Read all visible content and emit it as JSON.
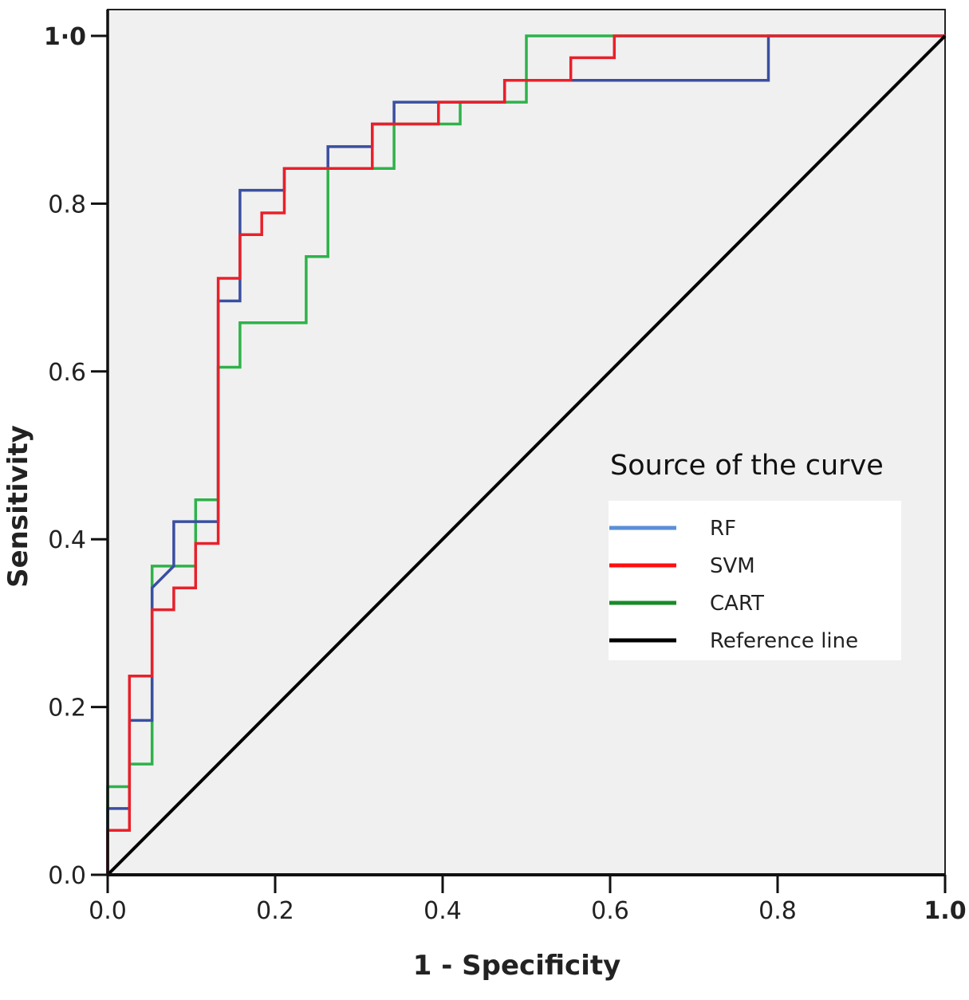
{
  "chart_data": {
    "type": "line",
    "title": "",
    "xlabel": "1 - Specificity",
    "ylabel": "Sensitivity",
    "xlim": [
      0,
      1
    ],
    "ylim": [
      0,
      1
    ],
    "grid": false,
    "x_ticks": [
      {
        "value": 0.0,
        "label": "0.0"
      },
      {
        "value": 0.2,
        "label": "0.2"
      },
      {
        "value": 0.4,
        "label": "0.4"
      },
      {
        "value": 0.6,
        "label": "0.6"
      },
      {
        "value": 0.8,
        "label": "0.8"
      },
      {
        "value": 1.0,
        "label": "1.0"
      }
    ],
    "y_ticks": [
      {
        "value": 0.0,
        "label": "0.0"
      },
      {
        "value": 0.2,
        "label": "0.2"
      },
      {
        "value": 0.4,
        "label": "0.4"
      },
      {
        "value": 0.6,
        "label": "0.6"
      },
      {
        "value": 0.8,
        "label": "0.8"
      },
      {
        "value": 1.0,
        "label": "1·0"
      }
    ],
    "legend": {
      "title": "Source of the curve",
      "placement": "center-right"
    },
    "series": [
      {
        "name": "RF",
        "color": "#3a4fa0",
        "legend_color": "#5b8fd6",
        "points": [
          [
            0,
            0
          ],
          [
            0,
            0.079
          ],
          [
            0.026,
            0.079
          ],
          [
            0.026,
            0.184
          ],
          [
            0.053,
            0.184
          ],
          [
            0.053,
            0.342
          ],
          [
            0.079,
            0.368
          ],
          [
            0.079,
            0.421
          ],
          [
            0.132,
            0.421
          ],
          [
            0.132,
            0.684
          ],
          [
            0.158,
            0.684
          ],
          [
            0.158,
            0.816
          ],
          [
            0.211,
            0.816
          ],
          [
            0.211,
            0.842
          ],
          [
            0.263,
            0.842
          ],
          [
            0.263,
            0.868
          ],
          [
            0.316,
            0.868
          ],
          [
            0.316,
            0.895
          ],
          [
            0.342,
            0.895
          ],
          [
            0.342,
            0.921
          ],
          [
            0.474,
            0.921
          ],
          [
            0.474,
            0.947
          ],
          [
            0.789,
            0.947
          ],
          [
            0.789,
            1.0
          ],
          [
            1.0,
            1.0
          ]
        ]
      },
      {
        "name": "SVM",
        "color": "#e8202a",
        "legend_color": "#ff1010",
        "points": [
          [
            0,
            0
          ],
          [
            0,
            0.053
          ],
          [
            0.026,
            0.053
          ],
          [
            0.026,
            0.237
          ],
          [
            0.053,
            0.237
          ],
          [
            0.053,
            0.316
          ],
          [
            0.079,
            0.316
          ],
          [
            0.079,
            0.342
          ],
          [
            0.105,
            0.342
          ],
          [
            0.105,
            0.395
          ],
          [
            0.132,
            0.395
          ],
          [
            0.132,
            0.711
          ],
          [
            0.158,
            0.711
          ],
          [
            0.158,
            0.763
          ],
          [
            0.184,
            0.763
          ],
          [
            0.184,
            0.789
          ],
          [
            0.211,
            0.789
          ],
          [
            0.211,
            0.842
          ],
          [
            0.316,
            0.842
          ],
          [
            0.316,
            0.895
          ],
          [
            0.395,
            0.895
          ],
          [
            0.395,
            0.921
          ],
          [
            0.474,
            0.921
          ],
          [
            0.474,
            0.947
          ],
          [
            0.553,
            0.947
          ],
          [
            0.553,
            0.974
          ],
          [
            0.605,
            0.974
          ],
          [
            0.605,
            1.0
          ],
          [
            1.0,
            1.0
          ]
        ]
      },
      {
        "name": "CART",
        "color": "#2eb24a",
        "legend_color": "#1a8a2a",
        "points": [
          [
            0,
            0
          ],
          [
            0,
            0.105
          ],
          [
            0.026,
            0.105
          ],
          [
            0.026,
            0.132
          ],
          [
            0.053,
            0.132
          ],
          [
            0.053,
            0.368
          ],
          [
            0.105,
            0.368
          ],
          [
            0.105,
            0.447
          ],
          [
            0.132,
            0.447
          ],
          [
            0.132,
            0.605
          ],
          [
            0.158,
            0.605
          ],
          [
            0.158,
            0.658
          ],
          [
            0.237,
            0.658
          ],
          [
            0.237,
            0.737
          ],
          [
            0.263,
            0.737
          ],
          [
            0.263,
            0.842
          ],
          [
            0.342,
            0.842
          ],
          [
            0.342,
            0.895
          ],
          [
            0.421,
            0.895
          ],
          [
            0.421,
            0.921
          ],
          [
            0.5,
            0.921
          ],
          [
            0.5,
            1.0
          ],
          [
            1.0,
            1.0
          ]
        ]
      },
      {
        "name": "Reference line",
        "color": "#000000",
        "legend_color": "#000000",
        "points": [
          [
            0,
            0
          ],
          [
            1,
            1
          ]
        ]
      }
    ]
  },
  "colors": {
    "plot_background": "#f0f0f0",
    "page_background": "#ffffff",
    "axis": "#111111"
  }
}
